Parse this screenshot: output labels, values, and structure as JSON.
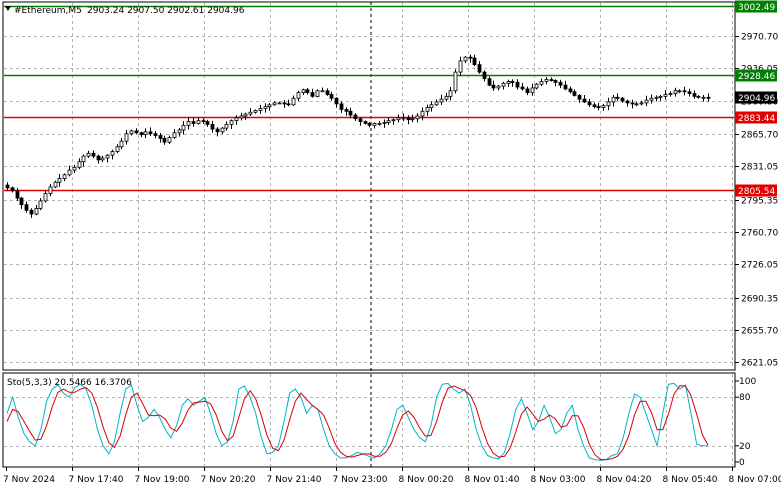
{
  "header": {
    "symbol": "#Ethereum,M5",
    "ohlc": "2903.24 2907.50 2902.61 2904.96"
  },
  "indicator": {
    "label": "Sto(5,3,3) 20.5466 16.3706"
  },
  "colors": {
    "candle": "#000000",
    "support_resistance": "#e00000",
    "target": "#008000",
    "price_tag": "#000000",
    "stoch_main": "#00b4c8",
    "stoch_signal": "#d80000",
    "grid": "#b4b4b4"
  },
  "chart_data": [
    {
      "type": "candlestick",
      "title": "",
      "ylim": [
        2614,
        3006
      ],
      "y_ticks": [
        "2970.70",
        "2936.05",
        "2900.80",
        "2865.70",
        "2831.05",
        "2795.35",
        "2760.70",
        "2726.05",
        "2690.35",
        "2655.70",
        "2621.05"
      ],
      "x_ticks": [
        "7 Nov 2024",
        "7 Nov 17:40",
        "7 Nov 19:00",
        "7 Nov 20:20",
        "7 Nov 21:40",
        "7 Nov 23:00",
        "8 Nov 00:20",
        "8 Nov 01:40",
        "8 Nov 03:00",
        "8 Nov 04:20",
        "8 Nov 05:40",
        "8 Nov 07:00"
      ],
      "levels": [
        {
          "value": 3002.49,
          "label": "3002.49",
          "color": "#008000"
        },
        {
          "value": 2928.46,
          "label": "2928.46",
          "color": "#008000"
        },
        {
          "value": 2904.96,
          "label": "2904.96",
          "color": "#000000"
        },
        {
          "value": 2883.44,
          "label": "2883.44",
          "color": "#e00000"
        },
        {
          "value": 2805.54,
          "label": "2805.54",
          "color": "#e00000"
        }
      ],
      "close_series": [
        2808,
        2805,
        2797,
        2790,
        2784,
        2780,
        2786,
        2794,
        2802,
        2809,
        2814,
        2818,
        2822,
        2827,
        2830,
        2836,
        2842,
        2845,
        2842,
        2838,
        2840,
        2843,
        2847,
        2852,
        2858,
        2866,
        2869,
        2867,
        2865,
        2868,
        2866,
        2864,
        2861,
        2857,
        2862,
        2867,
        2870,
        2875,
        2879,
        2877,
        2880,
        2879,
        2876,
        2871,
        2868,
        2872,
        2876,
        2880,
        2883,
        2885,
        2887,
        2889,
        2891,
        2893,
        2895,
        2897,
        2899,
        2899,
        2898,
        2897,
        2904,
        2910,
        2913,
        2910,
        2906,
        2912,
        2912,
        2908,
        2904,
        2898,
        2892,
        2890,
        2886,
        2882,
        2879,
        2877,
        2875,
        2877,
        2877,
        2878,
        2880,
        2881,
        2883,
        2883,
        2881,
        2882,
        2885,
        2890,
        2894,
        2897,
        2900,
        2903,
        2906,
        2912,
        2932,
        2944,
        2948,
        2947,
        2940,
        2932,
        2925,
        2918,
        2915,
        2917,
        2920,
        2922,
        2921,
        2916,
        2914,
        2910,
        2915,
        2919,
        2922,
        2924,
        2923,
        2921,
        2918,
        2914,
        2911,
        2907,
        2903,
        2900,
        2897,
        2895,
        2894,
        2896,
        2900,
        2905,
        2904,
        2901,
        2899,
        2898,
        2898,
        2899,
        2902,
        2904,
        2905,
        2906,
        2908,
        2909,
        2912,
        2912,
        2911,
        2909,
        2906,
        2905,
        2905,
        2904.96
      ],
      "stochastic": {
        "ylim": [
          0,
          100
        ],
        "levels": [
          20,
          80
        ],
        "y_ticks": [
          "100",
          "80",
          "20",
          "0"
        ],
        "main": [
          60,
          80,
          55,
          35,
          25,
          20,
          40,
          75,
          90,
          95,
          85,
          80,
          92,
          96,
          90,
          70,
          40,
          20,
          10,
          25,
          60,
          90,
          95,
          70,
          50,
          55,
          65,
          55,
          40,
          30,
          45,
          70,
          78,
          70,
          75,
          80,
          60,
          35,
          20,
          25,
          50,
          90,
          94,
          80,
          60,
          30,
          10,
          12,
          20,
          50,
          85,
          90,
          80,
          60,
          70,
          65,
          40,
          20,
          10,
          5,
          5,
          8,
          12,
          10,
          7,
          5,
          10,
          20,
          40,
          65,
          70,
          55,
          40,
          30,
          25,
          45,
          80,
          96,
          97,
          90,
          85,
          90,
          70,
          40,
          20,
          8,
          5,
          4,
          12,
          35,
          65,
          78,
          60,
          40,
          50,
          70,
          55,
          35,
          40,
          60,
          70,
          40,
          20,
          5,
          3,
          2,
          3,
          8,
          10,
          30,
          60,
          84,
          80,
          60,
          40,
          20,
          60,
          96,
          97,
          90,
          95,
          60,
          22,
          20,
          20
        ],
        "signal": [
          50,
          65,
          62,
          50,
          38,
          27,
          28,
          45,
          68,
          86,
          90,
          86,
          86,
          90,
          92,
          85,
          67,
          43,
          24,
          18,
          32,
          58,
          80,
          85,
          72,
          58,
          57,
          58,
          53,
          42,
          38,
          48,
          64,
          73,
          74,
          75,
          72,
          58,
          38,
          26,
          32,
          55,
          78,
          88,
          78,
          57,
          33,
          17,
          14,
          27,
          52,
          75,
          85,
          77,
          70,
          65,
          58,
          42,
          23,
          12,
          7,
          6,
          8,
          10,
          10,
          7,
          7,
          12,
          23,
          42,
          58,
          63,
          55,
          42,
          32,
          33,
          50,
          74,
          91,
          94,
          91,
          88,
          82,
          67,
          43,
          23,
          11,
          6,
          7,
          17,
          37,
          59,
          68,
          59,
          50,
          53,
          58,
          53,
          43,
          45,
          57,
          57,
          43,
          22,
          9,
          3,
          3,
          4,
          7,
          16,
          33,
          58,
          75,
          75,
          61,
          40,
          40,
          59,
          84,
          94,
          94,
          82,
          59,
          34,
          21
        ]
      }
    }
  ]
}
